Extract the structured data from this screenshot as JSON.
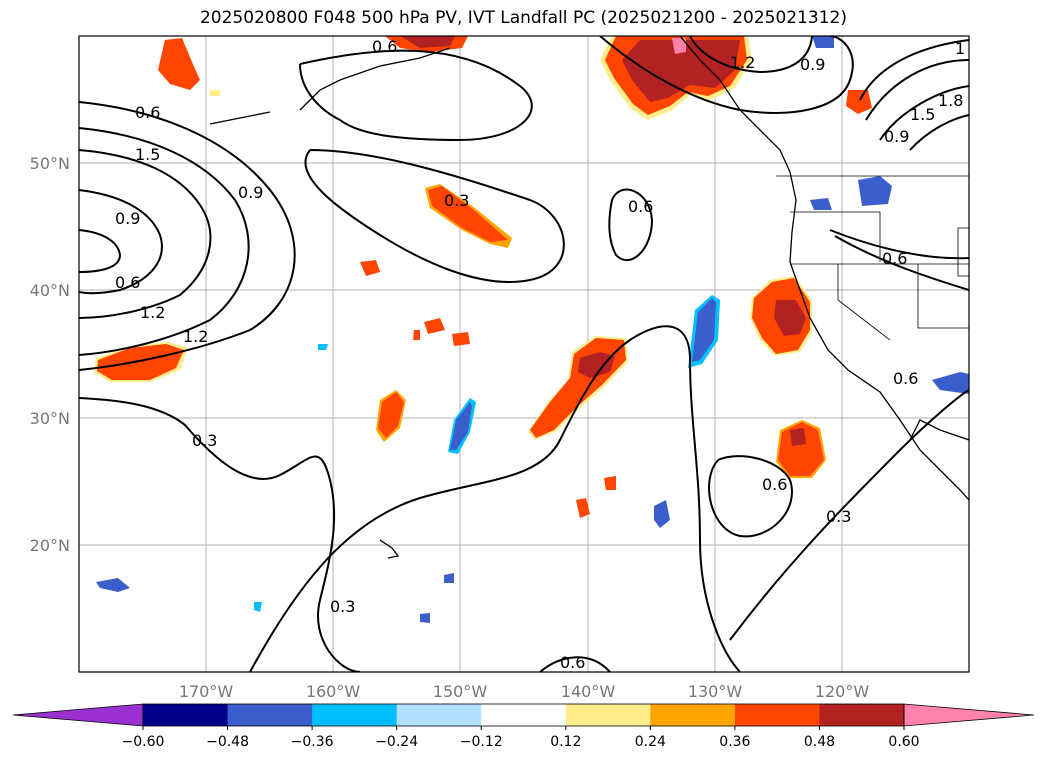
{
  "title": "2025020800 F048 500 hPa PV, IVT Landfall PC (2025021200 - 2025021312)",
  "lon_labels": [
    "170°W",
    "160°W",
    "150°W",
    "140°W",
    "130°W",
    "120°W"
  ],
  "lat_labels": [
    "50°N",
    "40°N",
    "30°N",
    "20°N"
  ],
  "colorbar": {
    "levels": [
      "−0.60",
      "−0.48",
      "−0.36",
      "−0.24",
      "−0.12",
      "0.12",
      "0.24",
      "0.36",
      "0.48",
      "0.60"
    ],
    "colors": [
      "#9b30d0",
      "#00008b",
      "#3a5fcd",
      "#00bfff",
      "#b0e2ff",
      "#ffffff",
      "#ffec8b",
      "#ffa500",
      "#ff4500",
      "#b22222",
      "#ff82ab"
    ]
  },
  "contour_labels": [
    "0.6",
    "1.5",
    "0.9",
    "0.9",
    "0.6",
    "1.2",
    "1.2",
    "0.3",
    "0.3",
    "0.6",
    "0.6",
    "0.3",
    "0.6",
    "0.3",
    "0.6",
    "1.2",
    "0.9",
    "1.5",
    "0.9",
    "0.6",
    "0.6",
    "1.8",
    "1"
  ]
}
